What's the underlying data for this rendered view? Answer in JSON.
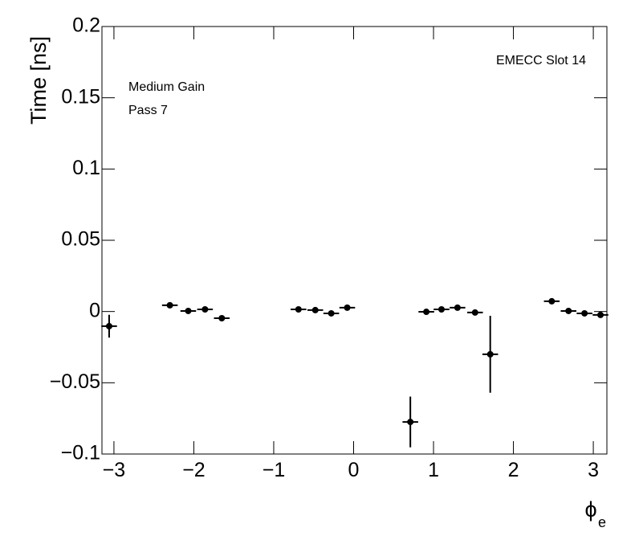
{
  "chart_data": {
    "type": "scatter",
    "y_label": "Time [ns]",
    "x_label": "ϕ",
    "x_label_subscript": "e",
    "annotations": [
      "EMECC Slot 14",
      "Medium Gain",
      "Pass 7"
    ],
    "x": [
      -3.06,
      -2.3,
      -2.07,
      -1.86,
      -1.65,
      -0.69,
      -0.48,
      -0.28,
      -0.08,
      0.71,
      0.91,
      1.1,
      1.3,
      1.52,
      1.71,
      2.48,
      2.69,
      2.89,
      3.09
    ],
    "values": [
      -0.0103,
      0.0044,
      0.0004,
      0.0015,
      -0.0047,
      0.0015,
      0.001,
      -0.0013,
      0.0027,
      -0.0775,
      -0.0002,
      0.0015,
      0.0027,
      -0.0007,
      -0.03,
      0.0072,
      0.0004,
      -0.0013,
      -0.0024
    ],
    "yerr": [
      0.008,
      0.0015,
      0.0015,
      0.0015,
      0.0015,
      0.0015,
      0.0015,
      0.0015,
      0.0015,
      0.0178,
      0.0015,
      0.0015,
      0.0015,
      0.0015,
      0.027,
      0.0015,
      0.0015,
      0.0015,
      0.0015
    ],
    "xerr": 0.098,
    "color": "#000000",
    "xlim": [
      -3.15,
      3.17
    ],
    "ylim": [
      -0.1,
      0.2
    ],
    "xticks": [
      {
        "value": -3,
        "label": "−3"
      },
      {
        "value": -2,
        "label": "−2"
      },
      {
        "value": -1,
        "label": "−1"
      },
      0,
      1,
      2,
      3
    ],
    "yticks": [
      {
        "value": -0.1,
        "label": "−0.1"
      },
      {
        "value": -0.05,
        "label": "−0.05"
      },
      0,
      0.05,
      0.1,
      0.15,
      0.2
    ]
  }
}
